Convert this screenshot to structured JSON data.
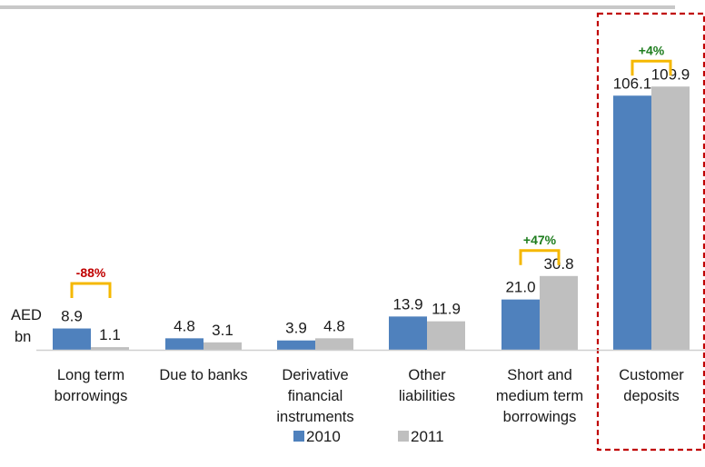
{
  "chart_data": {
    "type": "bar",
    "unit_label": [
      "AED",
      "bn"
    ],
    "categories": [
      [
        "Long term",
        "borrowings"
      ],
      [
        "Due to banks"
      ],
      [
        "Derivative",
        "financial",
        "instruments"
      ],
      [
        "Other",
        "liabilities"
      ],
      [
        "Short and",
        "medium term",
        "borrowings"
      ],
      [
        "Customer",
        "deposits"
      ]
    ],
    "series": [
      {
        "name": "2010",
        "values": [
          8.9,
          4.8,
          3.9,
          13.9,
          21.0,
          106.1
        ],
        "labels": [
          "8.9",
          "4.8",
          "3.9",
          "13.9",
          "21.0",
          "106.1"
        ]
      },
      {
        "name": "2011",
        "values": [
          1.1,
          3.1,
          4.8,
          11.9,
          30.8,
          109.9
        ],
        "labels": [
          "1.1",
          "3.1",
          "4.8",
          "11.9",
          "30.8",
          "109.9"
        ]
      }
    ],
    "changes": [
      {
        "category_index": 0,
        "label": "-88%"
      },
      {
        "category_index": 4,
        "label": "+47%"
      },
      {
        "category_index": 5,
        "label": "+4%"
      }
    ],
    "highlighted_category_index": 5,
    "legend_position": "bottom",
    "ylim": [
      0,
      110
    ],
    "grid": false
  },
  "colors": {
    "series_2010": "#4F81BD",
    "series_2011": "#BFBFBF",
    "increase": "#1E7D1E",
    "decrease": "#C00000",
    "bracket": "#F5B800",
    "highlight_box": "#C00000",
    "top_rule": "#C8C8C8"
  }
}
